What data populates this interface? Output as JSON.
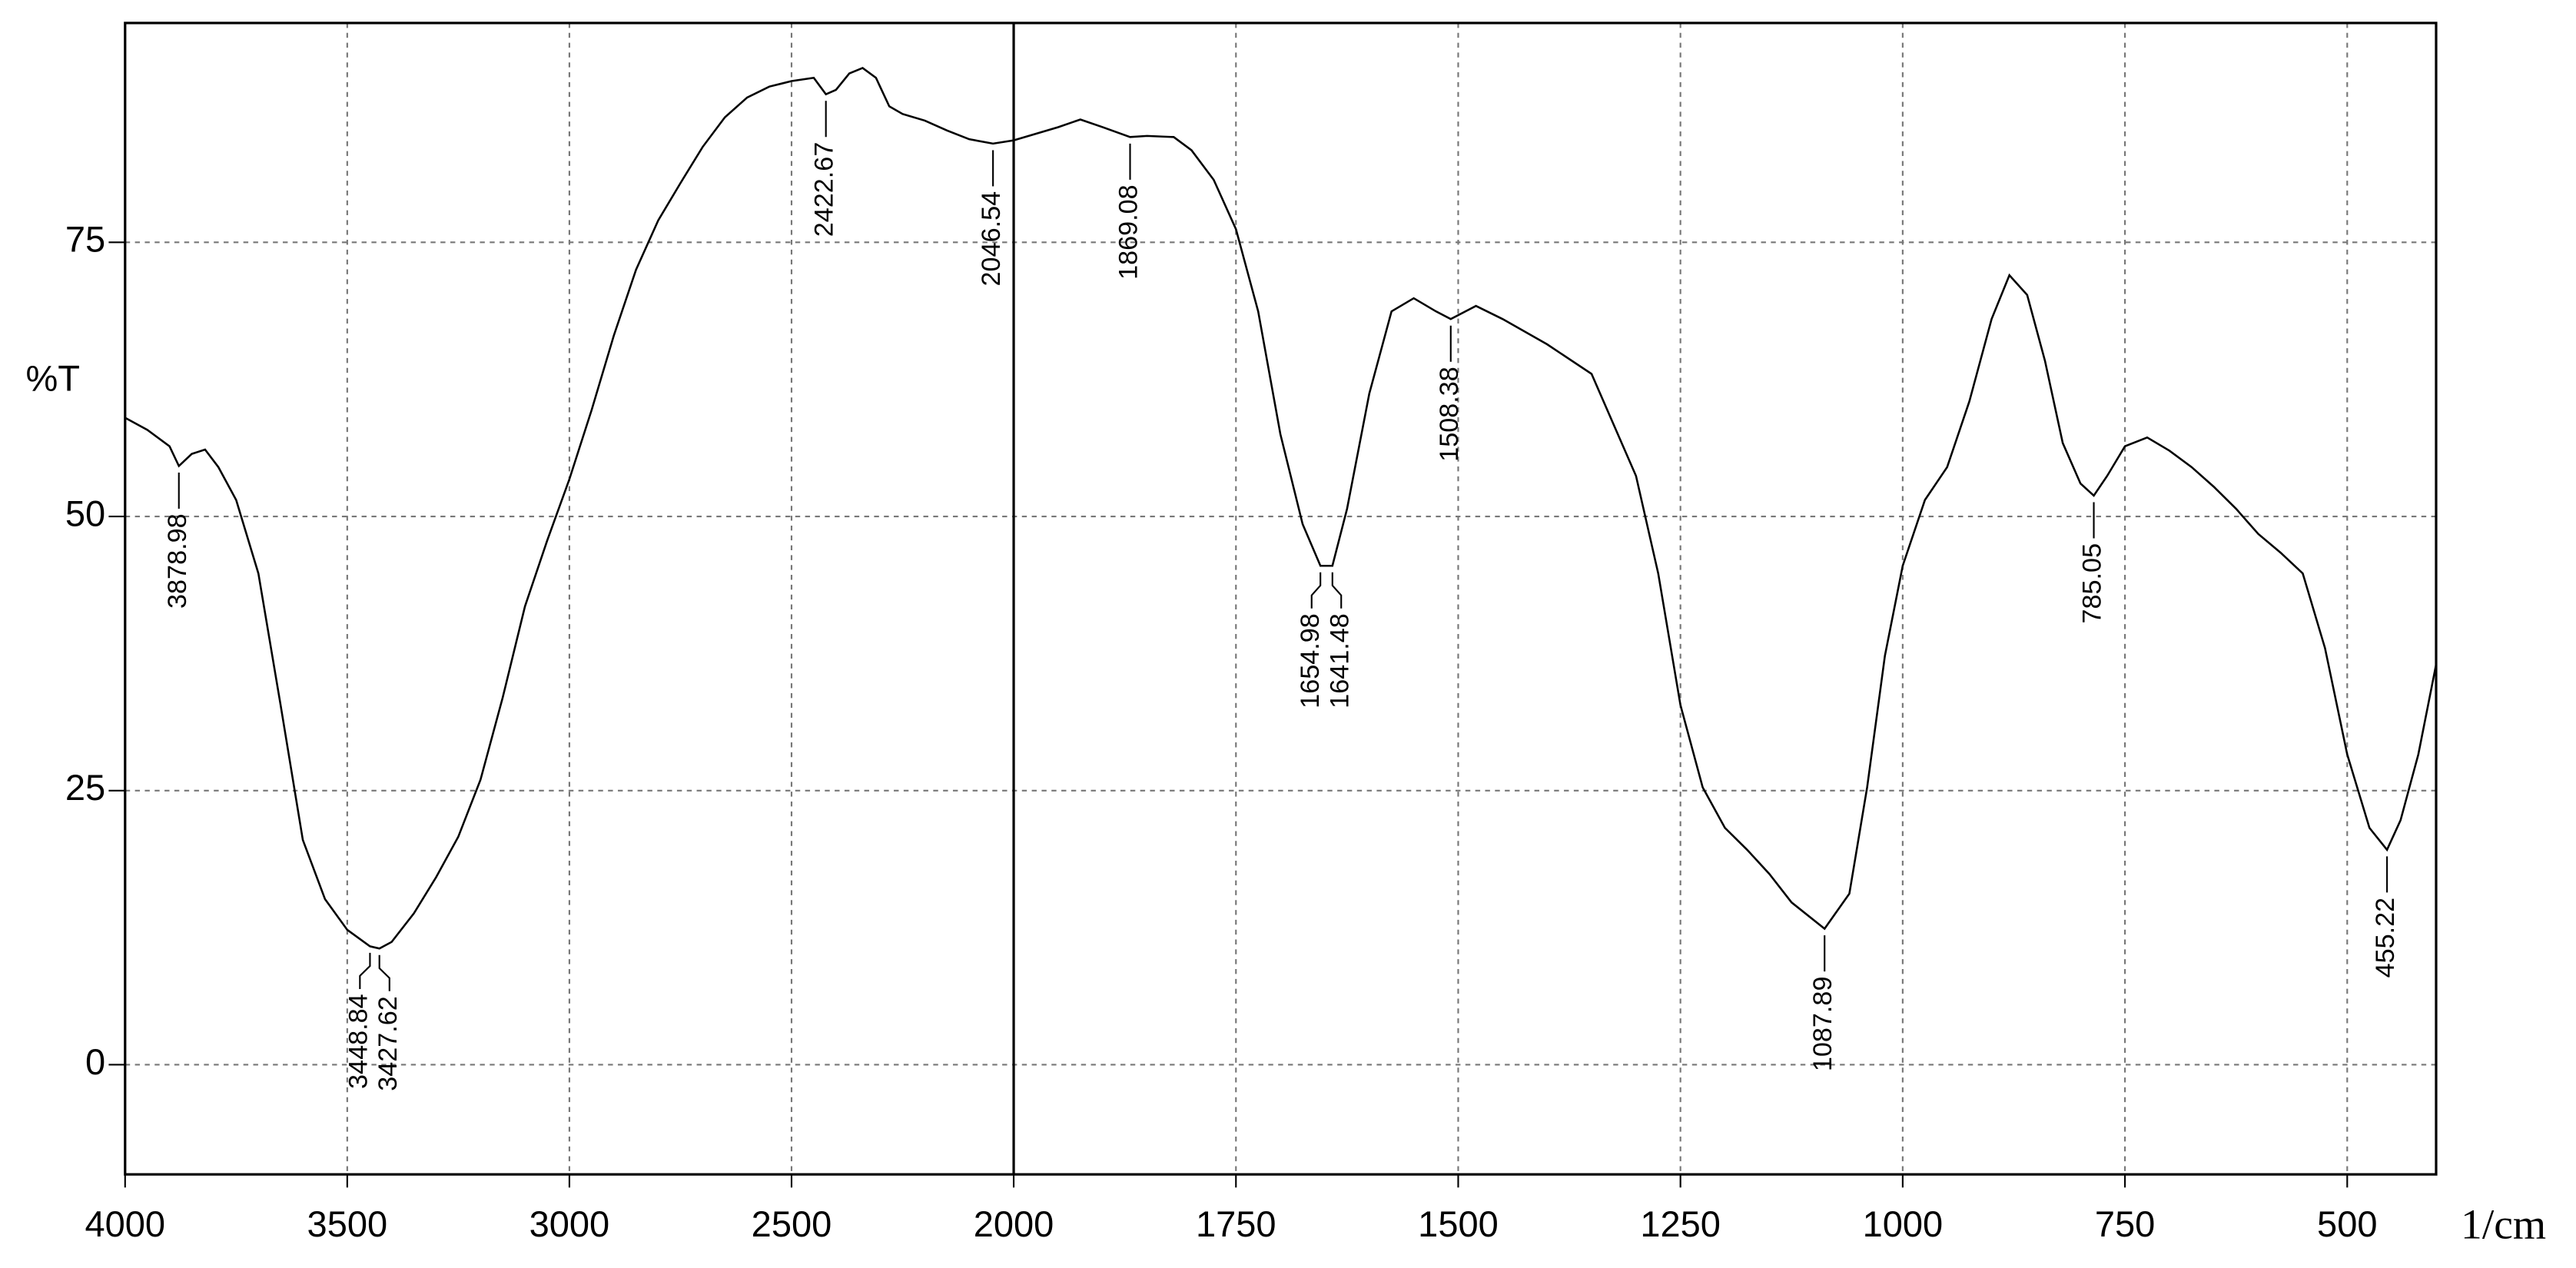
{
  "chart_data": {
    "type": "line",
    "ylabel": "%T",
    "xlabel": "1/cm",
    "xlim": [
      4000,
      400
    ],
    "xticks": [
      4000,
      3500,
      3000,
      2500,
      2000,
      1750,
      1500,
      1250,
      1000,
      750,
      500
    ],
    "xscale_break": 2000,
    "ylim": [
      -10,
      95
    ],
    "yticks": [
      0,
      25,
      50,
      75
    ],
    "grid": true,
    "x": [
      4000,
      3950,
      3900,
      3878.98,
      3850,
      3820,
      3790,
      3750,
      3700,
      3650,
      3600,
      3550,
      3500,
      3448.84,
      3427.62,
      3400,
      3350,
      3300,
      3250,
      3200,
      3150,
      3100,
      3050,
      3000,
      2950,
      2900,
      2850,
      2800,
      2750,
      2700,
      2650,
      2600,
      2550,
      2500,
      2450,
      2422.67,
      2400,
      2370,
      2340,
      2310,
      2280,
      2250,
      2200,
      2150,
      2100,
      2046.54,
      2000,
      1950,
      1925,
      1900,
      1869.08,
      1850,
      1820,
      1800,
      1775,
      1750,
      1725,
      1700,
      1675,
      1654.98,
      1641.48,
      1625,
      1600,
      1575,
      1550,
      1525,
      1508.38,
      1480,
      1450,
      1400,
      1350,
      1300,
      1275,
      1250,
      1225,
      1200,
      1175,
      1150,
      1125,
      1087.89,
      1060,
      1040,
      1020,
      1000,
      975,
      950,
      925,
      900,
      880,
      860,
      840,
      820,
      800,
      785.05,
      770,
      750,
      725,
      700,
      675,
      650,
      625,
      600,
      575,
      550,
      525,
      500,
      475,
      455.22,
      440,
      420,
      400
    ],
    "series": [
      {
        "color": "#000000",
        "values": [
          59.0,
          57.9,
          56.4,
          54.6,
          55.7,
          56.1,
          54.5,
          51.5,
          44.8,
          32.8,
          20.5,
          15.1,
          12.3,
          10.8,
          10.6,
          11.2,
          13.8,
          17.1,
          20.8,
          26.0,
          33.5,
          41.8,
          47.8,
          53.4,
          59.7,
          66.5,
          72.5,
          77.0,
          80.4,
          83.7,
          86.4,
          88.2,
          89.2,
          89.7,
          90.0,
          88.5,
          88.9,
          90.4,
          90.9,
          90.0,
          87.4,
          86.7,
          86.1,
          85.2,
          84.4,
          84.0,
          84.3,
          85.5,
          86.2,
          85.5,
          84.6,
          84.7,
          84.6,
          83.4,
          80.7,
          76.2,
          68.7,
          57.5,
          49.3,
          45.5,
          45.5,
          50.7,
          61.2,
          68.7,
          69.9,
          68.7,
          68.0,
          69.2,
          68.0,
          65.7,
          63.0,
          53.7,
          44.8,
          32.8,
          25.3,
          21.6,
          19.6,
          17.4,
          14.8,
          12.4,
          15.6,
          25.3,
          37.3,
          45.5,
          51.5,
          54.5,
          60.5,
          68.0,
          72.0,
          70.2,
          64.2,
          56.7,
          53.0,
          51.9,
          53.7,
          56.4,
          57.2,
          56.0,
          54.5,
          52.7,
          50.7,
          48.4,
          46.7,
          44.8,
          38.0,
          28.3,
          21.6,
          19.6,
          22.3,
          28.3,
          36.5
        ]
      }
    ],
    "peaks": {
      "x": [
        3878.98,
        3448.84,
        3427.62,
        2422.67,
        2046.54,
        1869.08,
        1654.98,
        1641.48,
        1508.38,
        1087.89,
        785.05,
        455.22
      ],
      "values": [
        54.6,
        10.8,
        10.6,
        88.5,
        84.0,
        84.6,
        45.5,
        45.5,
        68.0,
        12.4,
        51.9,
        19.6
      ]
    }
  }
}
